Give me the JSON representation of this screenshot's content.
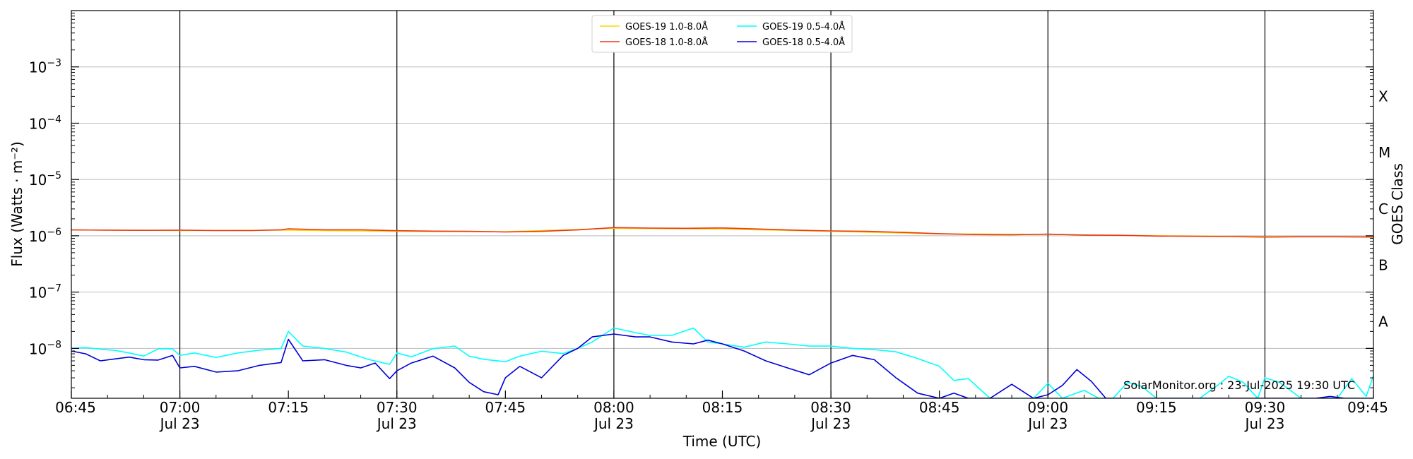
{
  "chart_data": {
    "type": "line",
    "xlabel": "Time (UTC)",
    "ylabel": "Flux (Watts · m⁻²)",
    "right_ylabel": "GOES Class",
    "credit": "SolarMonitor.org : 23-Jul-2025 19:30 UTC",
    "y_scale": "log",
    "ylim": [
      1.3e-09,
      0.01
    ],
    "xlim_minutes": [
      0,
      180
    ],
    "grid": "horizontal at decades",
    "legend_placement": "top-center",
    "x_ticks": [
      {
        "minute": 0,
        "label": "06:45",
        "sub": ""
      },
      {
        "minute": 15,
        "label": "07:00",
        "sub": "Jul 23"
      },
      {
        "minute": 30,
        "label": "07:15",
        "sub": ""
      },
      {
        "minute": 45,
        "label": "07:30",
        "sub": "Jul 23"
      },
      {
        "minute": 60,
        "label": "07:45",
        "sub": ""
      },
      {
        "minute": 75,
        "label": "08:00",
        "sub": "Jul 23"
      },
      {
        "minute": 90,
        "label": "08:15",
        "sub": ""
      },
      {
        "minute": 105,
        "label": "08:30",
        "sub": "Jul 23"
      },
      {
        "minute": 120,
        "label": "08:45",
        "sub": ""
      },
      {
        "minute": 135,
        "label": "09:00",
        "sub": "Jul 23"
      },
      {
        "minute": 150,
        "label": "09:15",
        "sub": ""
      },
      {
        "minute": 165,
        "label": "09:30",
        "sub": "Jul 23"
      },
      {
        "minute": 180,
        "label": "09:45",
        "sub": ""
      }
    ],
    "vlines_minutes": [
      15,
      45,
      75,
      105,
      135,
      165
    ],
    "y_ticks": [
      {
        "value": 1e-08,
        "base": "10",
        "exp": "−8"
      },
      {
        "value": 1e-07,
        "base": "10",
        "exp": "−7"
      },
      {
        "value": 1e-06,
        "base": "10",
        "exp": "−6"
      },
      {
        "value": 1e-05,
        "base": "10",
        "exp": "−5"
      },
      {
        "value": 0.0001,
        "base": "10",
        "exp": "−4"
      },
      {
        "value": 0.001,
        "base": "10",
        "exp": "−3"
      }
    ],
    "goes_classes": [
      {
        "label": "A",
        "value": 3e-08
      },
      {
        "label": "B",
        "value": 3e-07
      },
      {
        "label": "C",
        "value": 3e-06
      },
      {
        "label": "M",
        "value": 3e-05
      },
      {
        "label": "X",
        "value": 0.0003
      }
    ],
    "series": [
      {
        "name": "GOES-19 1.0-8.0Å",
        "color": "#ffd700",
        "x": [
          0,
          15,
          30,
          45,
          60,
          75,
          90,
          105,
          120,
          135,
          150,
          165,
          180
        ],
        "y": [
          1.27e-06,
          1.24e-06,
          1.26e-06,
          1.2e-06,
          1.18e-06,
          1.36e-06,
          1.32e-06,
          1.2e-06,
          1.08e-06,
          1.06e-06,
          1e-06,
          9.7e-07,
          9.6e-07
        ]
      },
      {
        "name": "GOES-18 1.0-8.0Å",
        "color": "#e8391a",
        "x": [
          0,
          5,
          10,
          15,
          20,
          25,
          29,
          30,
          35,
          40,
          45,
          50,
          55,
          60,
          65,
          70,
          75,
          80,
          85,
          90,
          95,
          100,
          105,
          110,
          115,
          120,
          125,
          130,
          135,
          140,
          145,
          150,
          155,
          160,
          165,
          170,
          175,
          180
        ],
        "y": [
          1.27e-06,
          1.26e-06,
          1.25e-06,
          1.26e-06,
          1.24e-06,
          1.24e-06,
          1.28e-06,
          1.33e-06,
          1.28e-06,
          1.28e-06,
          1.23e-06,
          1.21e-06,
          1.2e-06,
          1.17e-06,
          1.2e-06,
          1.27e-06,
          1.4e-06,
          1.37e-06,
          1.36e-06,
          1.38e-06,
          1.32e-06,
          1.26e-06,
          1.22e-06,
          1.2e-06,
          1.15e-06,
          1.09e-06,
          1.05e-06,
          1.04e-06,
          1.07e-06,
          1.03e-06,
          1.02e-06,
          9.9e-07,
          9.8e-07,
          9.7e-07,
          9.5e-07,
          9.6e-07,
          9.6e-07,
          9.5e-07
        ]
      },
      {
        "name": "GOES-19 0.5-4.0Å",
        "color": "#00ffff",
        "x": [
          0,
          2,
          4,
          6,
          8,
          10,
          12,
          14,
          15,
          17,
          20,
          23,
          26,
          29,
          30,
          32,
          35,
          38,
          41,
          44,
          45,
          47,
          50,
          53,
          55,
          57,
          60,
          62,
          65,
          68,
          70,
          72,
          75,
          78,
          80,
          83,
          86,
          88,
          90,
          93,
          96,
          99,
          102,
          105,
          108,
          111,
          114,
          117,
          120,
          122,
          124,
          127,
          130,
          133,
          135,
          137,
          140,
          142,
          144,
          146,
          148,
          150,
          153,
          156,
          159,
          160,
          162,
          164,
          165,
          167,
          170,
          173,
          175,
          177,
          179,
          180
        ],
        "y": [
          1e-08,
          1.03e-08,
          9.7e-09,
          9.2e-09,
          8.3e-09,
          7.3e-09,
          9.8e-09,
          9.8e-09,
          7.5e-09,
          8.3e-09,
          6.9e-09,
          8.3e-09,
          9.3e-09,
          1e-08,
          2e-08,
          1.1e-08,
          1e-08,
          8.6e-09,
          6.4e-09,
          5.2e-09,
          8.3e-09,
          7.1e-09,
          9.9e-09,
          1.1e-08,
          7.3e-09,
          6.4e-09,
          5.8e-09,
          7.3e-09,
          8.9e-09,
          8.1e-09,
          1e-08,
          1.3e-08,
          2.3e-08,
          1.9e-08,
          1.7e-08,
          1.7e-08,
          2.3e-08,
          1.3e-08,
          1.2e-08,
          1.05e-08,
          1.3e-08,
          1.2e-08,
          1.1e-08,
          1.1e-08,
          1e-08,
          9.5e-09,
          8.7e-09,
          6.6e-09,
          4.8e-09,
          2.7e-09,
          2.9e-09,
          1.3e-09,
          1.3e-09,
          1.3e-09,
          2.4e-09,
          1.3e-09,
          1.8e-09,
          1.3e-09,
          1.3e-09,
          2.5e-09,
          2.1e-09,
          1.3e-09,
          1.3e-09,
          1.3e-09,
          2.5e-09,
          3.2e-09,
          2.5e-09,
          1.3e-09,
          3e-09,
          2.5e-09,
          1.3e-09,
          1.3e-09,
          1.3e-09,
          2.9e-09,
          1.4e-09,
          3.3e-09
        ]
      },
      {
        "name": "GOES-18 0.5-4.0Å",
        "color": "#0000d8",
        "x": [
          0,
          2,
          4,
          6,
          8,
          10,
          12,
          14,
          15,
          17,
          20,
          23,
          26,
          29,
          30,
          32,
          35,
          38,
          40,
          42,
          44,
          45,
          47,
          50,
          53,
          55,
          57,
          59,
          60,
          62,
          65,
          68,
          70,
          72,
          75,
          78,
          80,
          83,
          86,
          88,
          90,
          93,
          96,
          99,
          102,
          105,
          108,
          111,
          114,
          117,
          120,
          122,
          124,
          127,
          130,
          133,
          135,
          137,
          139,
          141,
          143,
          145,
          147,
          150,
          155,
          160,
          165,
          170,
          172,
          174,
          176,
          178,
          180
        ],
        "y": [
          9e-09,
          8e-09,
          6e-09,
          6.5e-09,
          7e-09,
          6.3e-09,
          6.2e-09,
          7.5e-09,
          4.5e-09,
          4.8e-09,
          3.8e-09,
          4e-09,
          5e-09,
          5.6e-09,
          1.45e-08,
          6e-09,
          6.3e-09,
          5e-09,
          4.5e-09,
          5.5e-09,
          2.9e-09,
          4e-09,
          5.5e-09,
          7.3e-09,
          4.5e-09,
          2.5e-09,
          1.7e-09,
          1.5e-09,
          3e-09,
          4.8e-09,
          3e-09,
          7.5e-09,
          1e-08,
          1.6e-08,
          1.8e-08,
          1.6e-08,
          1.6e-08,
          1.3e-08,
          1.2e-08,
          1.4e-08,
          1.2e-08,
          9e-09,
          6e-09,
          4.5e-09,
          3.4e-09,
          5.5e-09,
          7.5e-09,
          6.3e-09,
          3e-09,
          1.6e-09,
          1.3e-09,
          1.6e-09,
          1.3e-09,
          1.3e-09,
          2.3e-09,
          1.3e-09,
          1.5e-09,
          2.2e-09,
          4.2e-09,
          2.6e-09,
          1.3e-09,
          1.3e-09,
          1.3e-09,
          1.3e-09,
          1.3e-09,
          1.3e-09,
          1.3e-09,
          1.3e-09,
          1.3e-09,
          1.4e-09,
          1.3e-09,
          1.3e-09,
          1.3e-09
        ]
      }
    ]
  }
}
